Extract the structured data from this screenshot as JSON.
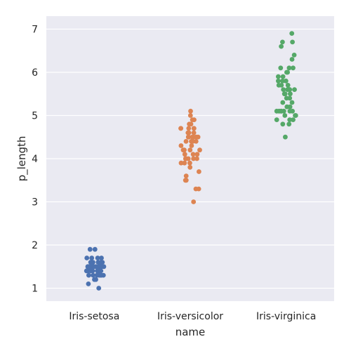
{
  "chart_data": {
    "type": "scatter",
    "style": "strip",
    "title": "",
    "xlabel": "name",
    "ylabel": "p_length",
    "categories": [
      "Iris-setosa",
      "Iris-versicolor",
      "Iris-virginica"
    ],
    "ylim": [
      0.7,
      7.3
    ],
    "yticks": [
      1,
      2,
      3,
      4,
      5,
      6,
      7
    ],
    "grid": true,
    "background": "#EAEAF2",
    "grid_color": "#FFFFFF",
    "series": [
      {
        "category": "Iris-setosa",
        "color": "#4C72B0",
        "values": [
          1.4,
          1.4,
          1.3,
          1.5,
          1.4,
          1.7,
          1.4,
          1.5,
          1.4,
          1.5,
          1.5,
          1.6,
          1.4,
          1.1,
          1.2,
          1.5,
          1.3,
          1.4,
          1.7,
          1.5,
          1.7,
          1.5,
          1.0,
          1.7,
          1.9,
          1.6,
          1.6,
          1.5,
          1.4,
          1.6,
          1.6,
          1.5,
          1.5,
          1.4,
          1.5,
          1.2,
          1.3,
          1.5,
          1.3,
          1.5,
          1.3,
          1.3,
          1.3,
          1.6,
          1.9,
          1.4,
          1.6,
          1.4,
          1.5,
          1.4
        ]
      },
      {
        "category": "Iris-versicolor",
        "color": "#DD8452",
        "values": [
          4.7,
          4.5,
          4.9,
          4.0,
          4.6,
          4.5,
          4.7,
          3.3,
          4.6,
          3.9,
          3.5,
          4.2,
          4.0,
          4.7,
          3.6,
          4.4,
          4.5,
          4.1,
          4.5,
          3.9,
          4.8,
          4.0,
          4.9,
          4.7,
          4.3,
          4.4,
          4.8,
          5.0,
          4.5,
          3.5,
          3.8,
          3.7,
          3.9,
          5.1,
          4.5,
          4.5,
          4.7,
          4.4,
          4.1,
          4.0,
          4.4,
          4.6,
          4.0,
          3.3,
          4.2,
          4.2,
          4.2,
          4.3,
          3.0,
          4.1
        ]
      },
      {
        "category": "Iris-virginica",
        "color": "#55A868",
        "values": [
          6.0,
          5.1,
          5.9,
          5.6,
          5.8,
          6.6,
          4.5,
          6.3,
          5.8,
          6.1,
          5.1,
          5.3,
          5.5,
          5.0,
          5.1,
          5.3,
          5.5,
          6.7,
          6.9,
          5.0,
          5.7,
          4.9,
          6.7,
          4.9,
          5.7,
          6.0,
          4.8,
          4.9,
          5.6,
          5.8,
          6.1,
          6.4,
          5.6,
          5.1,
          5.6,
          6.1,
          5.6,
          5.5,
          4.8,
          5.4,
          5.6,
          5.1,
          5.1,
          5.9,
          5.7,
          5.2,
          5.0,
          5.2,
          5.4,
          5.1
        ]
      }
    ]
  }
}
